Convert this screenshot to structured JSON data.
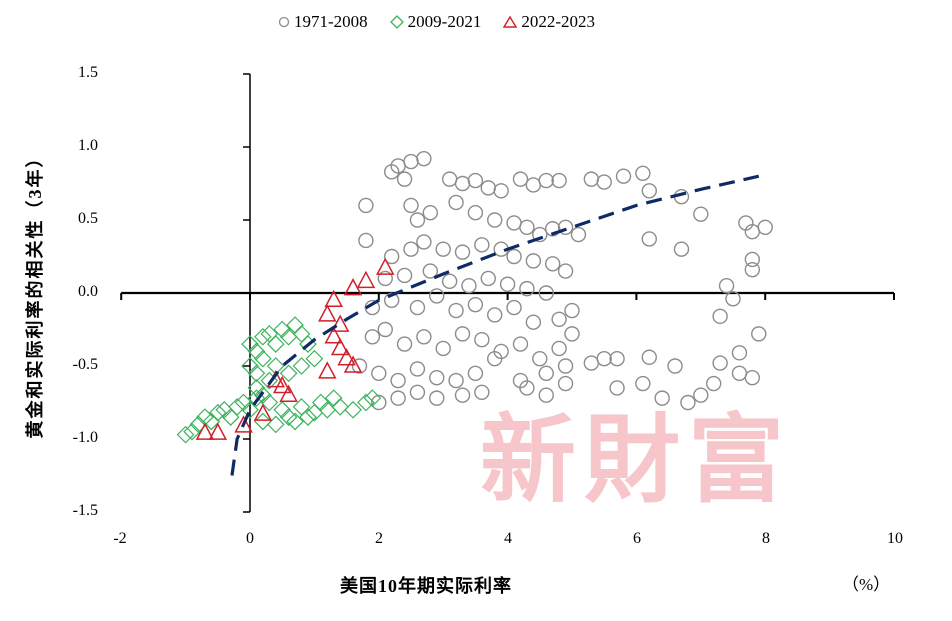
{
  "chart_data": {
    "type": "scatter",
    "title": "",
    "xlabel": "美国10年期实际利率",
    "x_unit": "（%）",
    "ylabel": "黄金和实际利率的相关性（3年）",
    "xlim": [
      -2,
      10
    ],
    "ylim": [
      -1.5,
      1.5
    ],
    "x_ticks": [
      "-2",
      "0",
      "2",
      "4",
      "6",
      "8",
      "10"
    ],
    "y_ticks": [
      "1.5",
      "1.0",
      "0.5",
      "0.0",
      "-0.5",
      "-1.0",
      "-1.5"
    ],
    "grid": false,
    "legend_position": "top",
    "watermark": "新財富",
    "series": [
      {
        "name": "1971-2008",
        "marker": "circle",
        "color": "#8c8c8c",
        "points": [
          [
            2.2,
            0.83
          ],
          [
            2.3,
            0.87
          ],
          [
            2.5,
            0.9
          ],
          [
            2.7,
            0.92
          ],
          [
            2.4,
            0.78
          ],
          [
            3.1,
            0.78
          ],
          [
            3.3,
            0.75
          ],
          [
            3.5,
            0.77
          ],
          [
            3.7,
            0.72
          ],
          [
            3.9,
            0.7
          ],
          [
            4.2,
            0.78
          ],
          [
            4.4,
            0.74
          ],
          [
            4.6,
            0.77
          ],
          [
            4.8,
            0.77
          ],
          [
            5.3,
            0.78
          ],
          [
            5.5,
            0.76
          ],
          [
            5.8,
            0.8
          ],
          [
            6.1,
            0.82
          ],
          [
            1.8,
            0.6
          ],
          [
            1.8,
            0.36
          ],
          [
            2.5,
            0.6
          ],
          [
            2.6,
            0.5
          ],
          [
            2.8,
            0.55
          ],
          [
            3.2,
            0.62
          ],
          [
            3.5,
            0.55
          ],
          [
            3.8,
            0.5
          ],
          [
            4.1,
            0.48
          ],
          [
            4.3,
            0.45
          ],
          [
            4.5,
            0.4
          ],
          [
            4.7,
            0.44
          ],
          [
            4.9,
            0.45
          ],
          [
            5.1,
            0.4
          ],
          [
            2.2,
            0.25
          ],
          [
            2.5,
            0.3
          ],
          [
            2.7,
            0.35
          ],
          [
            3.0,
            0.3
          ],
          [
            3.3,
            0.28
          ],
          [
            3.6,
            0.33
          ],
          [
            3.9,
            0.3
          ],
          [
            4.1,
            0.25
          ],
          [
            4.4,
            0.22
          ],
          [
            4.7,
            0.2
          ],
          [
            4.9,
            0.15
          ],
          [
            2.1,
            0.1
          ],
          [
            2.4,
            0.12
          ],
          [
            2.8,
            0.15
          ],
          [
            3.1,
            0.08
          ],
          [
            3.4,
            0.05
          ],
          [
            3.7,
            0.1
          ],
          [
            4.0,
            0.06
          ],
          [
            4.3,
            0.03
          ],
          [
            4.6,
            0.0
          ],
          [
            1.9,
            -0.1
          ],
          [
            2.2,
            -0.05
          ],
          [
            2.6,
            -0.1
          ],
          [
            2.9,
            -0.02
          ],
          [
            3.2,
            -0.12
          ],
          [
            3.5,
            -0.08
          ],
          [
            3.8,
            -0.15
          ],
          [
            4.1,
            -0.1
          ],
          [
            4.4,
            -0.2
          ],
          [
            4.8,
            -0.18
          ],
          [
            5.0,
            -0.12
          ],
          [
            1.9,
            -0.3
          ],
          [
            2.1,
            -0.25
          ],
          [
            2.4,
            -0.35
          ],
          [
            2.7,
            -0.3
          ],
          [
            3.0,
            -0.38
          ],
          [
            3.3,
            -0.28
          ],
          [
            3.6,
            -0.32
          ],
          [
            3.9,
            -0.4
          ],
          [
            4.2,
            -0.35
          ],
          [
            4.5,
            -0.45
          ],
          [
            4.8,
            -0.38
          ],
          [
            5.0,
            -0.28
          ],
          [
            1.7,
            -0.5
          ],
          [
            2.0,
            -0.55
          ],
          [
            2.3,
            -0.6
          ],
          [
            2.6,
            -0.52
          ],
          [
            2.9,
            -0.58
          ],
          [
            3.2,
            -0.6
          ],
          [
            3.5,
            -0.55
          ],
          [
            3.8,
            -0.45
          ],
          [
            4.2,
            -0.6
          ],
          [
            4.6,
            -0.55
          ],
          [
            4.9,
            -0.5
          ],
          [
            2.0,
            -0.75
          ],
          [
            2.3,
            -0.72
          ],
          [
            2.6,
            -0.68
          ],
          [
            2.9,
            -0.72
          ],
          [
            3.3,
            -0.7
          ],
          [
            3.6,
            -0.68
          ],
          [
            4.3,
            -0.65
          ],
          [
            4.6,
            -0.7
          ],
          [
            4.9,
            -0.62
          ],
          [
            5.3,
            -0.48
          ],
          [
            5.5,
            -0.45
          ],
          [
            5.7,
            -0.45
          ],
          [
            6.2,
            -0.44
          ],
          [
            6.6,
            -0.5
          ],
          [
            7.3,
            -0.48
          ],
          [
            5.7,
            -0.65
          ],
          [
            6.1,
            -0.62
          ],
          [
            6.4,
            -0.72
          ],
          [
            6.8,
            -0.75
          ],
          [
            7.0,
            -0.7
          ],
          [
            7.2,
            -0.62
          ],
          [
            7.6,
            -0.55
          ],
          [
            7.8,
            -0.58
          ],
          [
            7.9,
            -0.28
          ],
          [
            7.6,
            -0.41
          ],
          [
            7.3,
            -0.16
          ],
          [
            7.5,
            -0.04
          ],
          [
            7.4,
            0.05
          ],
          [
            6.2,
            0.7
          ],
          [
            6.7,
            0.66
          ],
          [
            6.2,
            0.37
          ],
          [
            6.7,
            0.3
          ],
          [
            7.0,
            0.54
          ],
          [
            7.7,
            0.48
          ],
          [
            7.8,
            0.42
          ],
          [
            8.0,
            0.45
          ],
          [
            7.8,
            0.23
          ],
          [
            7.8,
            0.16
          ]
        ]
      },
      {
        "name": "2009-2021",
        "marker": "diamond",
        "color": "#3cb35c",
        "points": [
          [
            -1.0,
            -0.97
          ],
          [
            -0.9,
            -0.95
          ],
          [
            -0.8,
            -0.9
          ],
          [
            -0.7,
            -0.85
          ],
          [
            -0.6,
            -0.88
          ],
          [
            -0.5,
            -0.82
          ],
          [
            -0.4,
            -0.8
          ],
          [
            -0.3,
            -0.85
          ],
          [
            -0.2,
            -0.78
          ],
          [
            -0.1,
            -0.75
          ],
          [
            0.0,
            -0.8
          ],
          [
            0.1,
            -0.72
          ],
          [
            0.0,
            -0.35
          ],
          [
            0.1,
            -0.4
          ],
          [
            0.2,
            -0.3
          ],
          [
            0.3,
            -0.28
          ],
          [
            0.4,
            -0.35
          ],
          [
            0.5,
            -0.25
          ],
          [
            0.6,
            -0.3
          ],
          [
            0.7,
            -0.22
          ],
          [
            0.8,
            -0.28
          ],
          [
            0.9,
            -0.35
          ],
          [
            0.0,
            -0.5
          ],
          [
            0.1,
            -0.55
          ],
          [
            0.2,
            -0.45
          ],
          [
            0.3,
            -0.6
          ],
          [
            0.4,
            -0.5
          ],
          [
            0.6,
            -0.55
          ],
          [
            0.8,
            -0.5
          ],
          [
            1.0,
            -0.45
          ],
          [
            0.1,
            -0.65
          ],
          [
            0.2,
            -0.7
          ],
          [
            0.3,
            -0.75
          ],
          [
            0.5,
            -0.8
          ],
          [
            0.6,
            -0.85
          ],
          [
            0.8,
            -0.78
          ],
          [
            1.0,
            -0.82
          ],
          [
            1.2,
            -0.8
          ],
          [
            1.4,
            -0.78
          ],
          [
            1.6,
            -0.8
          ],
          [
            1.8,
            -0.75
          ],
          [
            1.9,
            -0.72
          ],
          [
            0.2,
            -0.88
          ],
          [
            0.4,
            -0.9
          ],
          [
            0.7,
            -0.88
          ],
          [
            0.9,
            -0.85
          ],
          [
            1.1,
            -0.75
          ],
          [
            1.3,
            -0.72
          ]
        ]
      },
      {
        "name": "2022-2023",
        "marker": "triangle",
        "color": "#d0202a",
        "points": [
          [
            -0.7,
            -0.96
          ],
          [
            -0.5,
            -0.96
          ],
          [
            -0.1,
            -0.91
          ],
          [
            0.2,
            -0.83
          ],
          [
            0.4,
            -0.6
          ],
          [
            0.5,
            -0.64
          ],
          [
            0.6,
            -0.7
          ],
          [
            1.2,
            -0.54
          ],
          [
            1.2,
            -0.15
          ],
          [
            1.3,
            -0.05
          ],
          [
            1.3,
            -0.3
          ],
          [
            1.4,
            -0.38
          ],
          [
            1.4,
            -0.22
          ],
          [
            1.5,
            -0.45
          ],
          [
            1.6,
            -0.5
          ],
          [
            1.6,
            0.03
          ],
          [
            1.8,
            0.08
          ],
          [
            2.1,
            0.17
          ]
        ]
      }
    ],
    "trendline": {
      "style": "dashed",
      "color": "#0f2b66",
      "type": "logarithmic",
      "points": [
        [
          -0.28,
          -1.25
        ],
        [
          -0.2,
          -1.0
        ],
        [
          0.0,
          -0.8
        ],
        [
          0.5,
          -0.5
        ],
        [
          1.0,
          -0.32
        ],
        [
          1.5,
          -0.18
        ],
        [
          2.0,
          -0.05
        ],
        [
          3.0,
          0.13
        ],
        [
          4.0,
          0.3
        ],
        [
          5.0,
          0.45
        ],
        [
          6.0,
          0.6
        ],
        [
          7.0,
          0.71
        ],
        [
          7.9,
          0.8
        ]
      ]
    }
  }
}
